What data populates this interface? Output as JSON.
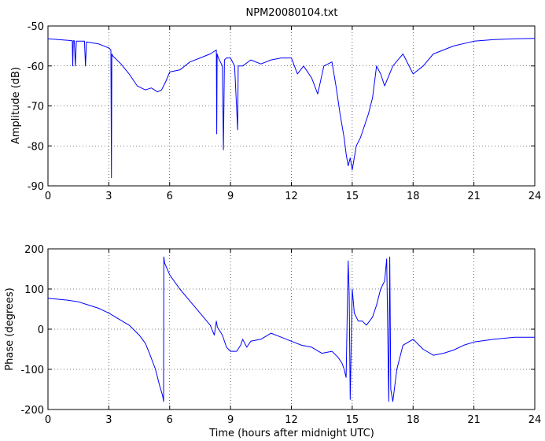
{
  "figure": {
    "title": "NPM20080104.txt",
    "line_color": "#0000ff"
  },
  "chart_data": [
    {
      "type": "line",
      "title": "NPM20080104.txt",
      "xlabel": "",
      "ylabel": "Amplitude (dB)",
      "xlim": [
        0,
        24
      ],
      "ylim": [
        -90,
        -50
      ],
      "xticks": [
        0,
        3,
        6,
        9,
        12,
        15,
        18,
        21,
        24
      ],
      "yticks": [
        -90,
        -80,
        -70,
        -60,
        -50
      ],
      "grid": true,
      "x": [
        0,
        0.5,
        1.0,
        1.2,
        1.22,
        1.25,
        1.3,
        1.35,
        1.4,
        1.8,
        1.85,
        1.9,
        2.5,
        3.0,
        3.1,
        3.13,
        3.15,
        3.2,
        3.3,
        3.6,
        4.0,
        4.4,
        4.8,
        5.1,
        5.4,
        5.6,
        5.8,
        6.0,
        6.5,
        7.0,
        7.5,
        8.0,
        8.3,
        8.32,
        8.34,
        8.4,
        8.6,
        8.65,
        8.7,
        8.8,
        9.0,
        9.2,
        9.35,
        9.38,
        9.4,
        9.6,
        10.0,
        10.5,
        11.0,
        11.5,
        12.0,
        12.3,
        12.6,
        13.0,
        13.3,
        13.6,
        14.0,
        14.2,
        14.4,
        14.6,
        14.7,
        14.8,
        14.9,
        15.0,
        15.2,
        15.4,
        15.6,
        15.8,
        16.0,
        16.2,
        16.4,
        16.6,
        17.0,
        17.5,
        18.0,
        18.5,
        19.0,
        20.0,
        21.0,
        22.0,
        23.0,
        24.0
      ],
      "y": [
        -53.2,
        -53.4,
        -53.6,
        -53.7,
        -60,
        -53.7,
        -53.7,
        -60,
        -53.8,
        -53.8,
        -60,
        -54,
        -54.5,
        -55.5,
        -56,
        -88,
        -57,
        -57.5,
        -58,
        -59.5,
        -62,
        -65,
        -66,
        -65.5,
        -66.5,
        -66,
        -64,
        -61.5,
        -61,
        -59,
        -58,
        -57,
        -56,
        -77,
        -57,
        -58,
        -60,
        -81,
        -58.5,
        -58,
        -58,
        -60,
        -76,
        -60,
        -60,
        -60,
        -58.5,
        -59.5,
        -58.5,
        -58,
        -58,
        -62,
        -60,
        -63,
        -67,
        -60,
        -59,
        -65,
        -72,
        -78,
        -82,
        -85,
        -83,
        -86,
        -80,
        -78,
        -75,
        -72,
        -68,
        -60,
        -62,
        -65,
        -60,
        -57,
        -62,
        -60,
        -57,
        -55,
        -53.8,
        -53.4,
        -53.2,
        -53.1
      ]
    },
    {
      "type": "line",
      "title": "",
      "xlabel": "Time (hours after midnight UTC)",
      "ylabel": "Phase (degrees)",
      "xlim": [
        0,
        24
      ],
      "ylim": [
        -200,
        200
      ],
      "xticks": [
        0,
        3,
        6,
        9,
        12,
        15,
        18,
        21,
        24
      ],
      "yticks": [
        -200,
        -100,
        0,
        100,
        200
      ],
      "grid": true,
      "x": [
        0,
        1.0,
        1.5,
        2.0,
        2.5,
        3.0,
        3.5,
        4.0,
        4.5,
        4.8,
        5.0,
        5.3,
        5.5,
        5.65,
        5.7,
        5.71,
        5.75,
        6.0,
        6.5,
        7.0,
        7.5,
        8.0,
        8.2,
        8.3,
        8.35,
        8.6,
        8.8,
        9.0,
        9.3,
        9.5,
        9.6,
        9.8,
        10.0,
        10.5,
        11.0,
        11.5,
        12.0,
        12.5,
        13.0,
        13.5,
        14.0,
        14.3,
        14.5,
        14.6,
        14.7,
        14.8,
        14.85,
        14.9,
        15.0,
        15.1,
        15.3,
        15.5,
        15.7,
        16.0,
        16.2,
        16.4,
        16.6,
        16.7,
        16.75,
        16.8,
        16.85,
        16.9,
        17.0,
        17.2,
        17.5,
        18.0,
        18.5,
        19.0,
        19.5,
        20.0,
        20.5,
        21.0,
        22.0,
        23.0,
        24.0
      ],
      "y": [
        77,
        72,
        68,
        60,
        52,
        40,
        25,
        10,
        -15,
        -35,
        -60,
        -100,
        -140,
        -165,
        -180,
        180,
        165,
        135,
        100,
        70,
        40,
        10,
        -15,
        20,
        5,
        -15,
        -45,
        -55,
        -55,
        -40,
        -25,
        -45,
        -30,
        -25,
        -10,
        -20,
        -30,
        -40,
        -45,
        -60,
        -55,
        -70,
        -85,
        -100,
        -120,
        170,
        90,
        -175,
        100,
        40,
        20,
        20,
        10,
        30,
        60,
        100,
        120,
        175,
        0,
        -180,
        180,
        -150,
        -180,
        -100,
        -40,
        -25,
        -50,
        -65,
        -60,
        -52,
        -40,
        -32,
        -25,
        -20,
        -20
      ]
    }
  ]
}
